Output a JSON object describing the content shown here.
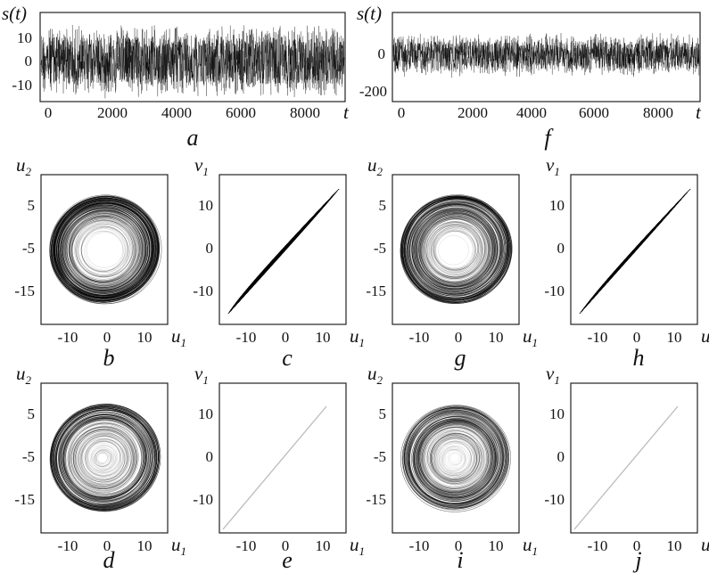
{
  "figure": {
    "panels": {
      "a": {
        "letter": "a",
        "ylabel": "s(t)",
        "xlabel": "t",
        "xticks": [
          "0",
          "2000",
          "4000",
          "6000",
          "8000"
        ],
        "yticks": [
          "10",
          "0",
          "-10"
        ]
      },
      "f": {
        "letter": "f",
        "ylabel": "s(t)",
        "xlabel": "t",
        "xticks": [
          "0",
          "2000",
          "4000",
          "6000",
          "8000"
        ],
        "yticks": [
          "0",
          "-200"
        ]
      },
      "b": {
        "letter": "b",
        "ylabel": "u",
        "ylabel_sub": "2",
        "xlabel": "u",
        "xlabel_sub": "1",
        "xticks": [
          "-10",
          "0",
          "10"
        ],
        "yticks": [
          "5",
          "-5",
          "-15"
        ]
      },
      "c": {
        "letter": "c",
        "ylabel": "v",
        "ylabel_sub": "1",
        "xlabel": "u",
        "xlabel_sub": "1",
        "xticks": [
          "-10",
          "0",
          "10"
        ],
        "yticks": [
          "10",
          "0",
          "-10"
        ]
      },
      "g": {
        "letter": "g",
        "ylabel": "u",
        "ylabel_sub": "2",
        "xlabel": "u",
        "xlabel_sub": "1",
        "xticks": [
          "-10",
          "0",
          "10"
        ],
        "yticks": [
          "5",
          "-5",
          "-15"
        ]
      },
      "h": {
        "letter": "h",
        "ylabel": "v",
        "ylabel_sub": "1",
        "xlabel": "u",
        "xlabel_sub": "1",
        "xticks": [
          "-10",
          "0",
          "10"
        ],
        "yticks": [
          "10",
          "0",
          "-10"
        ]
      },
      "d": {
        "letter": "d",
        "ylabel": "u",
        "ylabel_sub": "2",
        "xlabel": "u",
        "xlabel_sub": "1",
        "xticks": [
          "-10",
          "0",
          "10"
        ],
        "yticks": [
          "5",
          "-5",
          "-15"
        ]
      },
      "e": {
        "letter": "e",
        "ylabel": "v",
        "ylabel_sub": "1",
        "xlabel": "u",
        "xlabel_sub": "1",
        "xticks": [
          "-10",
          "0",
          "10"
        ],
        "yticks": [
          "10",
          "0",
          "-10"
        ]
      },
      "i": {
        "letter": "i",
        "ylabel": "u",
        "ylabel_sub": "2",
        "xlabel": "u",
        "xlabel_sub": "1",
        "xticks": [
          "-10",
          "0",
          "10"
        ],
        "yticks": [
          "5",
          "-5",
          "-15"
        ]
      },
      "j": {
        "letter": "j",
        "ylabel": "v",
        "ylabel_sub": "1",
        "xlabel": "u",
        "xlabel_sub": "1",
        "xticks": [
          "-10",
          "0",
          "10"
        ],
        "yticks": [
          "10",
          "0",
          "-10"
        ]
      }
    }
  },
  "colors": {
    "ink": "#111111",
    "trace": "#000000",
    "diagonal": "#bbbbbb"
  }
}
